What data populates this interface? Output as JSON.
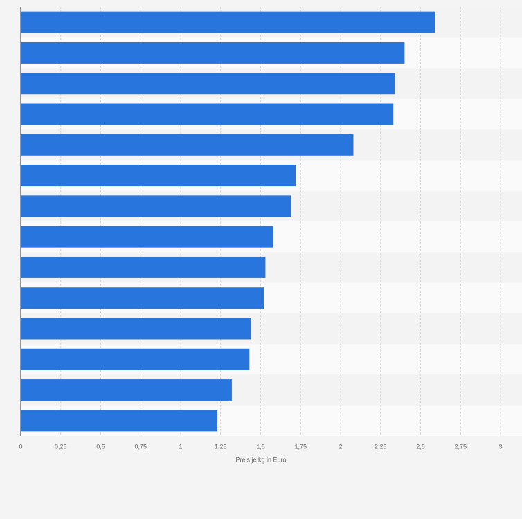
{
  "chart_data": {
    "type": "barh",
    "xlabel": "Preis je kg in Euro",
    "categories": [
      null,
      null,
      null,
      null,
      null,
      null,
      null,
      null,
      null,
      null,
      null,
      null,
      null,
      null
    ],
    "values": [
      2.59,
      2.4,
      2.34,
      2.33,
      2.08,
      1.72,
      1.69,
      1.58,
      1.53,
      1.52,
      1.44,
      1.43,
      1.32,
      1.23
    ],
    "color": "#2876dd",
    "xlim": [
      0,
      3
    ],
    "xticks": [
      0,
      {
        "value": 0.25,
        "label": "0,25"
      },
      {
        "value": 0.5,
        "label": "0,5"
      },
      {
        "value": 0.75,
        "label": "0,75"
      },
      1,
      {
        "value": 1.25,
        "label": "1,25"
      },
      {
        "value": 1.5,
        "label": "1,5"
      },
      {
        "value": 1.75,
        "label": "1,75"
      },
      2,
      {
        "value": 2.25,
        "label": "2,25"
      },
      {
        "value": 2.5,
        "label": "2,5"
      },
      {
        "value": 2.75,
        "label": "2,75"
      },
      3
    ],
    "grid": true
  }
}
